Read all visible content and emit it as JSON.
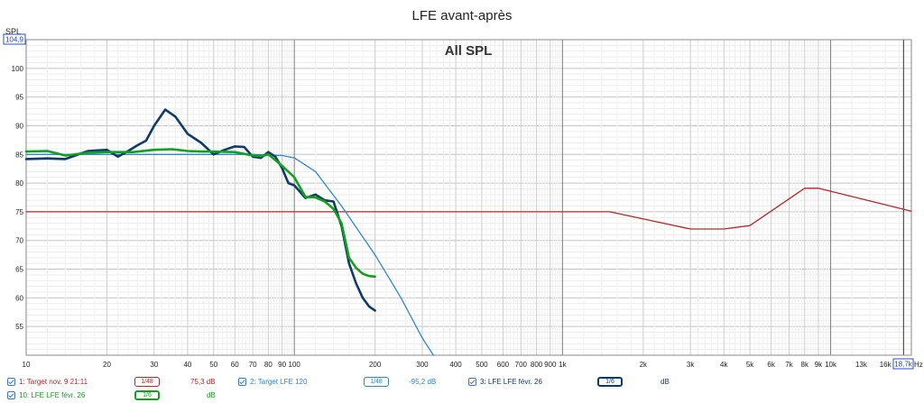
{
  "chart_data": {
    "type": "line",
    "title": "LFE avant-après",
    "subtitle": "All SPL",
    "ylabel": "SPL",
    "y_cursor_value": "104,9",
    "x_cursor_value": "18,7k",
    "x_unit": "Hz",
    "x_scale": "log",
    "xlim": [
      10,
      20000
    ],
    "ylim": [
      50,
      105
    ],
    "grid": true,
    "y_ticks": [
      55,
      60,
      65,
      70,
      75,
      80,
      85,
      90,
      95,
      100
    ],
    "x_ticks": [
      {
        "v": 10,
        "label": "10"
      },
      {
        "v": 20,
        "label": "20"
      },
      {
        "v": 30,
        "label": "30"
      },
      {
        "v": 40,
        "label": "40"
      },
      {
        "v": 50,
        "label": "50"
      },
      {
        "v": 60,
        "label": "60"
      },
      {
        "v": 70,
        "label": "70"
      },
      {
        "v": 80,
        "label": "80"
      },
      {
        "v": 90,
        "label": "90"
      },
      {
        "v": 100,
        "label": "100"
      },
      {
        "v": 200,
        "label": "200"
      },
      {
        "v": 300,
        "label": "300"
      },
      {
        "v": 400,
        "label": "400"
      },
      {
        "v": 500,
        "label": "500"
      },
      {
        "v": 600,
        "label": "600"
      },
      {
        "v": 700,
        "label": "700"
      },
      {
        "v": 800,
        "label": "800"
      },
      {
        "v": 900,
        "label": "900"
      },
      {
        "v": 1000,
        "label": "1k"
      },
      {
        "v": 2000,
        "label": "2k"
      },
      {
        "v": 3000,
        "label": "3k"
      },
      {
        "v": 4000,
        "label": "4k"
      },
      {
        "v": 5000,
        "label": "5k"
      },
      {
        "v": 6000,
        "label": "6k"
      },
      {
        "v": 7000,
        "label": "7k"
      },
      {
        "v": 8000,
        "label": "8k"
      },
      {
        "v": 9000,
        "label": "9k"
      },
      {
        "v": 10000,
        "label": "10k"
      },
      {
        "v": 13000,
        "label": "13k"
      },
      {
        "v": 16000,
        "label": "16k"
      }
    ],
    "series": [
      {
        "name": "1: Target nov. 9 21:11",
        "color": "#b8272a",
        "width": 1.3,
        "x": [
          10,
          1500,
          3000,
          4000,
          5000,
          8000,
          9000,
          20000
        ],
        "y": [
          75,
          75,
          72,
          72,
          72.6,
          79.1,
          79.1,
          75.1
        ]
      },
      {
        "name": "2: Target LFE 120",
        "color": "#2f86d2",
        "width": 1.3,
        "x": [
          10,
          20,
          40,
          70,
          90,
          100,
          120,
          150,
          200,
          250,
          300,
          330
        ],
        "y": [
          85,
          85,
          85,
          85,
          84.8,
          84.4,
          82,
          76,
          67.5,
          60,
          53,
          50
        ]
      },
      {
        "name": "3: LFE LFE févr. 26",
        "color": "#0e3b6a",
        "width": 2.6,
        "x": [
          10,
          12,
          14,
          17,
          20,
          22,
          24,
          26,
          28,
          30,
          33,
          36,
          40,
          45,
          50,
          55,
          60,
          65,
          70,
          75,
          80,
          85,
          90,
          95,
          100,
          110,
          120,
          130,
          140,
          150,
          160,
          170,
          180,
          190,
          200
        ],
        "y": [
          84.2,
          84.3,
          84.2,
          85.6,
          85.8,
          84.6,
          85.6,
          86.6,
          87.4,
          90,
          92.8,
          91.6,
          88.6,
          87,
          85,
          85.8,
          86.4,
          86.3,
          84.6,
          84.4,
          85.4,
          84.6,
          82.6,
          80,
          79.6,
          77.4,
          78,
          77,
          76.8,
          72.5,
          66,
          62.5,
          60,
          58.5,
          57.8
        ]
      },
      {
        "name": "10: LFE LFE févr. 26",
        "color": "#12a11e",
        "width": 2.6,
        "x": [
          10,
          12,
          14,
          17,
          20,
          25,
          30,
          35,
          40,
          45,
          50,
          60,
          70,
          75,
          80,
          85,
          90,
          95,
          100,
          110,
          120,
          130,
          140,
          150,
          160,
          170,
          180,
          190,
          200
        ],
        "y": [
          85.5,
          85.6,
          84.8,
          85.3,
          85.4,
          85.4,
          85.8,
          85.9,
          85.6,
          85.5,
          85.5,
          85.4,
          84.8,
          84.7,
          85,
          84,
          83,
          82,
          81,
          77.6,
          77.5,
          76.8,
          75.5,
          73,
          67,
          65.2,
          64.2,
          63.8,
          63.7
        ]
      }
    ]
  },
  "legend": [
    {
      "label": "1: Target nov. 9 21:11",
      "smoothing": "1/48",
      "value": "75,3 dB",
      "color": "#b8272a"
    },
    {
      "label": "2: Target LFE 120",
      "smoothing": "1/48",
      "value": "-95,2 dB",
      "color": "#2f86d2"
    },
    {
      "label": "3: LFE LFE févr. 26",
      "smoothing": "1/6",
      "value": "dB",
      "color": "#0e3b6a"
    },
    {
      "label": "10: LFE LFE févr. 26",
      "smoothing": "1/6",
      "value": "dB",
      "color": "#12a11e"
    }
  ]
}
